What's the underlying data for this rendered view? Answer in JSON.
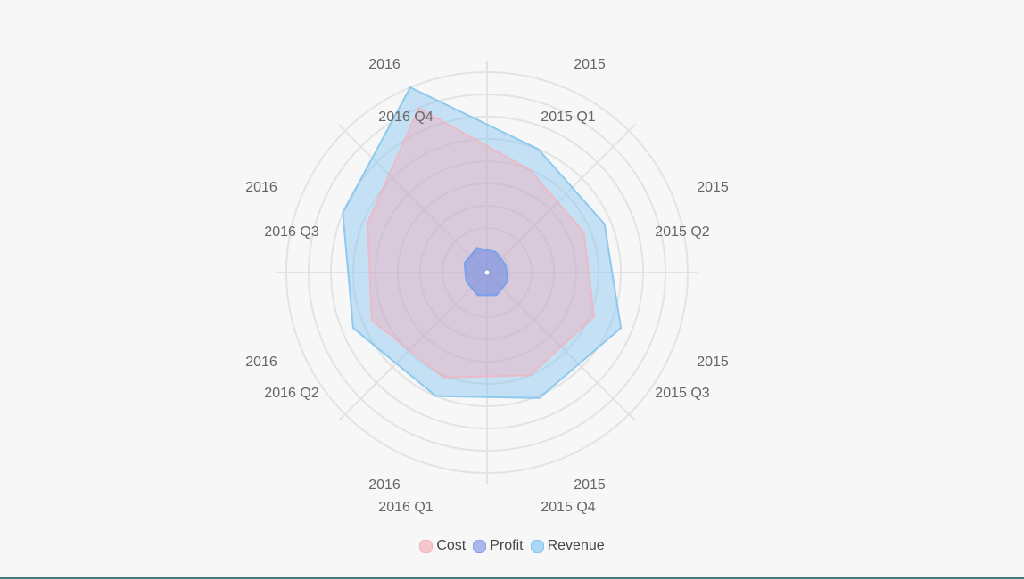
{
  "chart_data": {
    "type": "radar",
    "title": "",
    "categories": [
      [
        "2015",
        "2015 Q1"
      ],
      [
        "2015",
        "2015 Q2"
      ],
      [
        "2015",
        "2015 Q3"
      ],
      [
        "2015",
        "2015 Q4"
      ],
      [
        "2016",
        "2016 Q1"
      ],
      [
        "2016",
        "2016 Q2"
      ],
      [
        "2016",
        "2016 Q3"
      ],
      [
        "2016",
        "2016 Q4"
      ]
    ],
    "rlim": [
      0,
      9
    ],
    "grid": true,
    "legend_position": "bottom",
    "series": [
      {
        "name": "Cost",
        "values": [
          5.0,
          4.7,
          5.2,
          5.0,
          5.1,
          5.6,
          5.8,
          8.0
        ],
        "fill": "rgba(255,160,170,0.35)",
        "stroke": "rgba(255,170,180,0.6)"
      },
      {
        "name": "Profit",
        "values": [
          1.0,
          0.9,
          1.0,
          1.1,
          1.1,
          1.0,
          1.1,
          1.2
        ],
        "fill": "rgba(80,120,230,0.45)",
        "stroke": "#7aa2ec"
      },
      {
        "name": "Revenue",
        "values": [
          6.0,
          5.7,
          6.5,
          6.1,
          6.0,
          6.5,
          7.0,
          9.0
        ],
        "fill": "rgba(130,195,240,0.45)",
        "stroke": "#8ec9ef"
      }
    ]
  },
  "legend": {
    "items": [
      {
        "label": "Cost",
        "color": "#f5c7cc",
        "border": "#f4b3ba"
      },
      {
        "label": "Profit",
        "color": "#a9b8ec",
        "border": "#8aa2e8"
      },
      {
        "label": "Revenue",
        "color": "#a8d8f4",
        "border": "#86c6ee"
      }
    ]
  }
}
